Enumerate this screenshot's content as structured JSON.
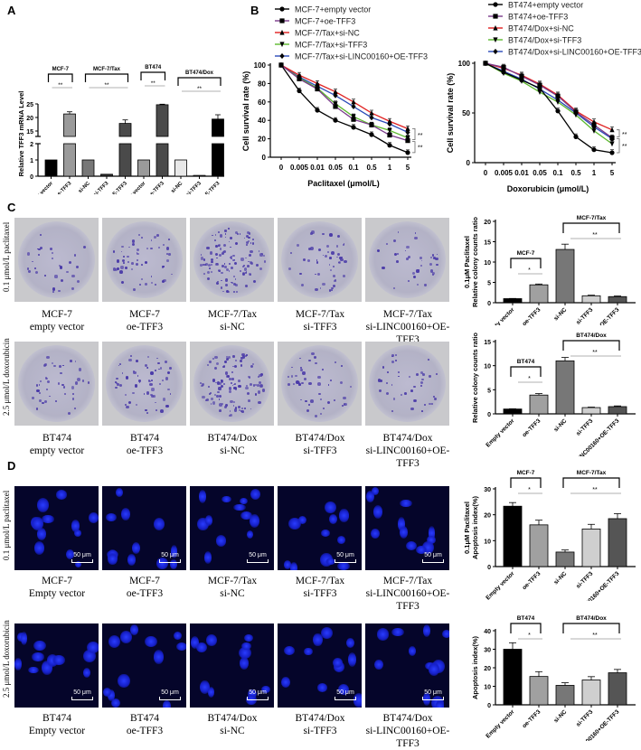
{
  "panels": {
    "A": {
      "label": "A"
    },
    "B": {
      "label": "B"
    },
    "C": {
      "label": "C"
    },
    "D": {
      "label": "D"
    }
  },
  "chart_data": [
    {
      "id": "A",
      "type": "bar",
      "title": "",
      "ylabel": "Relative TFF3 mRNA Level",
      "xlabel": "",
      "y_axis_break": {
        "lower": [
          0,
          2
        ],
        "upper": [
          13,
          25
        ]
      },
      "yticks_lower": [
        0,
        1,
        2
      ],
      "yticks_upper": [
        15,
        20,
        25
      ],
      "categories": [
        "Empty vector",
        "oe-TFF3",
        "si-NC",
        "si-TFF3",
        "si-LINC00160+OE-TFF3",
        "empty vector",
        "oe-TFF3",
        "si-NC",
        "si-TFF3",
        "si-LINC00160+OE-TFF3"
      ],
      "values": [
        1.0,
        21.3,
        1.0,
        0.12,
        17.8,
        1.0,
        24.7,
        1.0,
        0.05,
        19.4
      ],
      "errors": [
        0.02,
        0.8,
        0.02,
        0.02,
        1.3,
        0.03,
        0.2,
        0.02,
        0.01,
        1.6
      ],
      "bar_colors": [
        "#000000",
        "#9a9a9a",
        "#777777",
        "#333333",
        "#4a4a4a",
        "#9a9a9a",
        "#4a4a4a",
        "#e8e8e8",
        "#bdbdbd",
        "#000000"
      ],
      "group_brackets": [
        {
          "label": "MCF-7",
          "from": 0,
          "to": 1,
          "sig": "**"
        },
        {
          "label": "MCF-7/Tax",
          "from": 2,
          "to": 4,
          "sig": "**"
        },
        {
          "label": "BT474",
          "from": 5,
          "to": 6,
          "sig": "**"
        },
        {
          "label": "BT474/Dox",
          "from": 7,
          "to": 9,
          "sig": "**"
        }
      ]
    },
    {
      "id": "B-left",
      "type": "line",
      "xlabel": "Paclitaxel (μmol/L)",
      "ylabel": "Cell survival rate (%)",
      "ylim": [
        0,
        100
      ],
      "yticks": [
        0,
        20,
        40,
        60,
        80,
        100
      ],
      "x": [
        "0",
        "0.005",
        "0.01",
        "0.05",
        "0.1",
        "0.5",
        "1",
        "5"
      ],
      "series": [
        {
          "name": "MCF-7+empty vector",
          "color": "#000000",
          "marker": "circle",
          "values": [
            100,
            72,
            51,
            40,
            32.5,
            24.5,
            13,
            5
          ]
        },
        {
          "name": "MCF-7+oe-TFF3",
          "color": "#7a3a8a",
          "marker": "square",
          "values": [
            100,
            85,
            74,
            55,
            41,
            35,
            24,
            18
          ]
        },
        {
          "name": "MCF-7/Tax+si-NC",
          "color": "#e02020",
          "marker": "triangle",
          "values": [
            100,
            89,
            80,
            71,
            60,
            48,
            39,
            31
          ]
        },
        {
          "name": "MCF-7/Tax+si-TFF3",
          "color": "#5cb82e",
          "marker": "triangle-down",
          "values": [
            100,
            86,
            75,
            58,
            44,
            35,
            29,
            21
          ]
        },
        {
          "name": "MCF-7/Tax+si-LINC00160+OE-TFF3",
          "color": "#2a4ab8",
          "marker": "diamond",
          "values": [
            100,
            87,
            77,
            67,
            55,
            43,
            36,
            27
          ]
        }
      ],
      "annotations": [
        "**",
        "**"
      ]
    },
    {
      "id": "B-right",
      "type": "line",
      "xlabel": "Doxorubicin (μmol/L)",
      "ylabel": "Cell survival rate (%)",
      "ylim": [
        0,
        100
      ],
      "yticks": [
        0,
        50,
        100
      ],
      "x": [
        "0",
        "0.005",
        "0.01",
        "0.05",
        "0.1",
        "0.5",
        "1",
        "5"
      ],
      "series": [
        {
          "name": "BT474+empty vector",
          "color": "#000000",
          "marker": "circle",
          "values": [
            100,
            91,
            83,
            75,
            52,
            26,
            13,
            10
          ]
        },
        {
          "name": "BT474+oe-TFF3",
          "color": "#7a3a8a",
          "marker": "square",
          "values": [
            100,
            96,
            87,
            78,
            67,
            51,
            38,
            25
          ]
        },
        {
          "name": "BT474/Dox+si-NC",
          "color": "#e02020",
          "marker": "triangle",
          "values": [
            100,
            95,
            88,
            79,
            68,
            52,
            41,
            33
          ]
        },
        {
          "name": "BT474/Dox+si-TFF3",
          "color": "#5cb82e",
          "marker": "triangle-down",
          "values": [
            100,
            90,
            82,
            71,
            61,
            48,
            32,
            19
          ]
        },
        {
          "name": "BT474/Dox+si-LINC00160+OE-TFF3",
          "color": "#2a4ab8",
          "marker": "diamond",
          "values": [
            100,
            92,
            84,
            74,
            63,
            50,
            36,
            24
          ]
        }
      ],
      "annotations": [
        "**",
        "**"
      ]
    },
    {
      "id": "C-top",
      "type": "bar",
      "ylabel": "0.1μM Paclitaxel\nRelative colony counts ratio",
      "ylim": [
        0,
        20
      ],
      "yticks": [
        0,
        5,
        10,
        15,
        20
      ],
      "categories": [
        "Empty vector",
        "oe-TFF3",
        "si-NC",
        "si-TFF3",
        "si-LINC00160+OE-TFF3"
      ],
      "values": [
        1.0,
        4.4,
        13.1,
        1.7,
        1.5
      ],
      "errors": [
        0.05,
        0.2,
        1.3,
        0.15,
        0.15
      ],
      "bar_colors": [
        "#000000",
        "#a0a0a0",
        "#777777",
        "#cfcfcf",
        "#555555"
      ],
      "group_brackets": [
        {
          "label": "MCF-7",
          "from": 0,
          "to": 1,
          "sig": "*"
        },
        {
          "label": "MCF-7/Tax",
          "from": 2,
          "to": 4,
          "sig": "**"
        }
      ]
    },
    {
      "id": "C-bottom",
      "type": "bar",
      "ylabel": "Relative colony counts ratio",
      "ylim": [
        0,
        15
      ],
      "yticks": [
        0,
        5,
        10,
        15
      ],
      "categories": [
        "Empty vector",
        "oe-TFF3",
        "si-NC",
        "si-TFF3",
        "si-LINC00160+OE-TFF3"
      ],
      "values": [
        1.0,
        3.9,
        11.0,
        1.3,
        1.5
      ],
      "errors": [
        0.05,
        0.3,
        0.7,
        0.1,
        0.15
      ],
      "bar_colors": [
        "#000000",
        "#a0a0a0",
        "#777777",
        "#cfcfcf",
        "#555555"
      ],
      "group_brackets": [
        {
          "label": "BT474",
          "from": 0,
          "to": 1,
          "sig": "*"
        },
        {
          "label": "BT474/Dox",
          "from": 2,
          "to": 4,
          "sig": "**"
        }
      ]
    },
    {
      "id": "D-top",
      "type": "bar",
      "ylabel": "0.1μM Paclitaxel\nApoptosis index(%)",
      "ylim": [
        0,
        30
      ],
      "yticks": [
        0,
        10,
        20,
        30
      ],
      "categories": [
        "Empty vector",
        "oe-TFF3",
        "si-NC",
        "si-TFF3",
        "si-LINC00160+OE-TFF3"
      ],
      "values": [
        23.3,
        16.1,
        5.6,
        14.5,
        18.5
      ],
      "errors": [
        1.4,
        1.8,
        0.8,
        1.8,
        1.9
      ],
      "bar_colors": [
        "#000000",
        "#a0a0a0",
        "#777777",
        "#cfcfcf",
        "#555555"
      ],
      "group_brackets": [
        {
          "label": "MCF-7",
          "from": 0,
          "to": 1,
          "sig": "*"
        },
        {
          "label": "MCF-7/Tax",
          "from": 2,
          "to": 4,
          "sig": "**"
        }
      ]
    },
    {
      "id": "D-bottom",
      "type": "bar",
      "ylabel": "Apoptosis index(%)",
      "ylim": [
        0,
        40
      ],
      "yticks": [
        0,
        10,
        20,
        30,
        40
      ],
      "categories": [
        "Empty vector",
        "oe-TFF3",
        "si-NC",
        "si-TFF3",
        "si-LINC00160+OE-TFF3"
      ],
      "values": [
        30.0,
        15.3,
        10.5,
        13.4,
        17.3
      ],
      "errors": [
        3.5,
        2.6,
        1.4,
        1.8,
        1.8
      ],
      "bar_colors": [
        "#000000",
        "#a0a0a0",
        "#777777",
        "#cfcfcf",
        "#555555"
      ],
      "group_brackets": [
        {
          "label": "BT474",
          "from": 0,
          "to": 1,
          "sig": "*"
        },
        {
          "label": "BT474/Dox",
          "from": 2,
          "to": 4,
          "sig": "**"
        }
      ]
    }
  ],
  "images_C": {
    "row_labels": [
      "0.1 μmol/L paclitaxel",
      "2.5 μmol/L doxorubicin"
    ],
    "row1_captions": [
      [
        "MCF-7",
        "empty vector"
      ],
      [
        "MCF-7",
        "oe-TFF3"
      ],
      [
        "MCF-7/Tax",
        "si-NC"
      ],
      [
        "MCF-7/Tax",
        "si-TFF3"
      ],
      [
        "MCF-7/Tax",
        "si-LINC00160+OE-TFF3"
      ]
    ],
    "row2_captions": [
      [
        "BT474",
        "empty vector"
      ],
      [
        "BT474",
        "oe-TFF3"
      ],
      [
        "BT474/Dox",
        "si-NC"
      ],
      [
        "BT474/Dox",
        "si-TFF3"
      ],
      [
        "BT474/Dox",
        "si-LINC00160+OE-TFF3"
      ]
    ]
  },
  "images_D": {
    "row_labels": [
      "0.1 μmol/L paclitaxel",
      "2.5 μmol/L doxorubicin"
    ],
    "scale_bar": "50 μm",
    "row1_captions": [
      [
        "MCF-7",
        "Empty vector"
      ],
      [
        "MCF-7",
        "oe-TFF3"
      ],
      [
        "MCF-7/Tax",
        "si-NC"
      ],
      [
        "MCF-7/Tax",
        "si-TFF3"
      ],
      [
        "MCF-7/Tax",
        "si-LINC00160+OE-TFF3"
      ]
    ],
    "row2_captions": [
      [
        "BT474",
        "Empty vector"
      ],
      [
        "BT474",
        "oe-TFF3"
      ],
      [
        "BT474/Dox",
        "si-NC"
      ],
      [
        "BT474/Dox",
        "si-TFF3"
      ],
      [
        "BT474/Dox",
        "si-LINC00160+OE-TFF3"
      ]
    ]
  }
}
